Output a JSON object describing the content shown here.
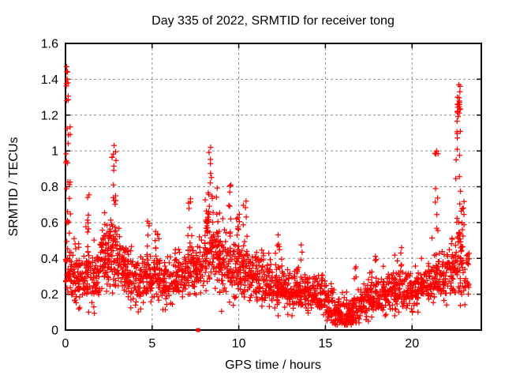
{
  "chart": {
    "title": "Day 335 of 2022, SRMTID for receiver tong",
    "xlabel": "GPS time / hours",
    "ylabel": "SRMTID / TECUs"
  },
  "chart_data": {
    "type": "scatter",
    "title": "Day 335 of 2022, SRMTID for receiver tong",
    "xlabel": "GPS time / hours",
    "ylabel": "SRMTID / TECUs",
    "marker": "plus-cross",
    "marker_color": "#ff0000",
    "border_color": "#000000",
    "grid": true,
    "grid_color": "#909090",
    "legend": "none",
    "xlim": [
      0,
      24
    ],
    "ylim": [
      0,
      1.6
    ],
    "xticks": [
      0,
      5,
      10,
      15,
      20
    ],
    "xtick_labels": [
      "0",
      "5",
      "10",
      "15",
      "20"
    ],
    "yticks": [
      0,
      0.2,
      0.4,
      0.6,
      0.8,
      1.0,
      1.2,
      1.4,
      1.6
    ],
    "ytick_labels": [
      "0",
      "0.2",
      "0.4",
      "0.6",
      "0.8",
      "1",
      "1.2",
      "1.4",
      "1.6"
    ],
    "seed": 42,
    "description": "Dense red '+' scatter of SRMTID vs GPS time. Baseline cloud ~0.2-0.45 TECUs, spikes near 0.1h (to 1.47), 2.8h (to 1.03), 8.4h (to 1.02), quiet trough 15.5-17h (~0.05-0.15), rising spike 22.3-23h (to 1.37) with dense blob 1.15-1.28.",
    "bands": [
      [
        0.0,
        0.5,
        0.12,
        0.6,
        0.33,
        0.08,
        48
      ],
      [
        0.5,
        1.0,
        0.1,
        0.55,
        0.28,
        0.08,
        52
      ],
      [
        1.0,
        1.5,
        0.1,
        0.62,
        0.3,
        0.08,
        52
      ],
      [
        1.5,
        2.0,
        0.08,
        0.58,
        0.28,
        0.08,
        50
      ],
      [
        2.0,
        2.5,
        0.1,
        0.7,
        0.38,
        0.09,
        55
      ],
      [
        2.5,
        3.0,
        0.15,
        0.72,
        0.45,
        0.1,
        58
      ],
      [
        3.0,
        3.5,
        0.15,
        0.62,
        0.36,
        0.08,
        55
      ],
      [
        3.5,
        4.0,
        0.1,
        0.52,
        0.3,
        0.08,
        50
      ],
      [
        4.0,
        4.5,
        0.08,
        0.46,
        0.27,
        0.07,
        48
      ],
      [
        4.5,
        5.0,
        0.1,
        0.55,
        0.29,
        0.07,
        50
      ],
      [
        5.0,
        5.5,
        0.12,
        0.55,
        0.3,
        0.07,
        50
      ],
      [
        5.5,
        6.0,
        0.1,
        0.48,
        0.27,
        0.07,
        46
      ],
      [
        6.0,
        6.5,
        0.1,
        0.52,
        0.28,
        0.07,
        46
      ],
      [
        6.5,
        7.0,
        0.12,
        0.55,
        0.3,
        0.07,
        46
      ],
      [
        7.0,
        7.5,
        0.1,
        0.6,
        0.32,
        0.08,
        50
      ],
      [
        7.5,
        8.0,
        0.12,
        0.62,
        0.34,
        0.08,
        50
      ],
      [
        8.0,
        8.5,
        0.15,
        0.75,
        0.45,
        0.1,
        58
      ],
      [
        8.5,
        9.0,
        0.12,
        0.7,
        0.4,
        0.09,
        55
      ],
      [
        9.0,
        9.5,
        0.08,
        0.65,
        0.35,
        0.08,
        50
      ],
      [
        9.5,
        10.0,
        0.1,
        0.62,
        0.34,
        0.08,
        50
      ],
      [
        10.0,
        10.5,
        0.12,
        0.6,
        0.33,
        0.08,
        50
      ],
      [
        10.5,
        11.0,
        0.1,
        0.55,
        0.3,
        0.07,
        50
      ],
      [
        11.0,
        11.5,
        0.1,
        0.52,
        0.28,
        0.07,
        50
      ],
      [
        11.5,
        12.0,
        0.08,
        0.46,
        0.26,
        0.07,
        50
      ],
      [
        12.0,
        12.5,
        0.08,
        0.5,
        0.25,
        0.07,
        50
      ],
      [
        12.5,
        13.0,
        0.08,
        0.45,
        0.24,
        0.07,
        50
      ],
      [
        13.0,
        13.5,
        0.08,
        0.42,
        0.22,
        0.06,
        50
      ],
      [
        13.5,
        14.0,
        0.06,
        0.42,
        0.22,
        0.06,
        50
      ],
      [
        14.0,
        14.5,
        0.06,
        0.38,
        0.2,
        0.06,
        50
      ],
      [
        14.5,
        15.0,
        0.05,
        0.35,
        0.18,
        0.06,
        50
      ],
      [
        15.0,
        15.5,
        0.04,
        0.38,
        0.14,
        0.06,
        50
      ],
      [
        15.5,
        16.0,
        0.03,
        0.25,
        0.09,
        0.05,
        52
      ],
      [
        16.0,
        16.5,
        0.03,
        0.24,
        0.08,
        0.05,
        52
      ],
      [
        16.5,
        17.0,
        0.04,
        0.32,
        0.11,
        0.05,
        50
      ],
      [
        17.0,
        17.5,
        0.05,
        0.32,
        0.15,
        0.06,
        48
      ],
      [
        17.5,
        18.0,
        0.06,
        0.4,
        0.18,
        0.06,
        48
      ],
      [
        18.0,
        18.5,
        0.08,
        0.38,
        0.18,
        0.06,
        46
      ],
      [
        18.5,
        19.0,
        0.08,
        0.42,
        0.2,
        0.06,
        46
      ],
      [
        19.0,
        19.5,
        0.1,
        0.48,
        0.22,
        0.06,
        46
      ],
      [
        19.5,
        20.0,
        0.1,
        0.5,
        0.22,
        0.06,
        46
      ],
      [
        20.0,
        20.5,
        0.1,
        0.4,
        0.22,
        0.06,
        46
      ],
      [
        20.5,
        21.0,
        0.12,
        0.45,
        0.25,
        0.06,
        46
      ],
      [
        21.0,
        21.5,
        0.12,
        0.55,
        0.28,
        0.07,
        48
      ],
      [
        21.5,
        22.0,
        0.12,
        0.52,
        0.28,
        0.07,
        48
      ],
      [
        22.0,
        22.5,
        0.15,
        0.7,
        0.33,
        0.08,
        50
      ],
      [
        22.5,
        23.0,
        0.1,
        0.8,
        0.4,
        0.12,
        52
      ],
      [
        23.0,
        23.3,
        0.1,
        0.55,
        0.28,
        0.09,
        22
      ]
    ],
    "spikes": [
      [
        0.15,
        0.14,
        0.55,
        1.47,
        26
      ],
      [
        1.35,
        0.08,
        0.5,
        0.78,
        7
      ],
      [
        2.2,
        0.12,
        0.45,
        0.7,
        8
      ],
      [
        2.8,
        0.12,
        0.7,
        1.03,
        13
      ],
      [
        4.75,
        0.1,
        0.4,
        0.66,
        6
      ],
      [
        5.3,
        0.1,
        0.4,
        0.62,
        6
      ],
      [
        7.15,
        0.08,
        0.45,
        0.77,
        7
      ],
      [
        8.35,
        0.15,
        0.62,
        1.02,
        15
      ],
      [
        8.8,
        0.1,
        0.5,
        0.85,
        8
      ],
      [
        9.45,
        0.1,
        0.5,
        0.86,
        8
      ],
      [
        9.95,
        0.1,
        0.5,
        0.8,
        7
      ],
      [
        10.35,
        0.1,
        0.45,
        0.72,
        6
      ],
      [
        12.3,
        0.1,
        0.4,
        0.62,
        5
      ],
      [
        13.6,
        0.06,
        0.38,
        0.5,
        3
      ],
      [
        16.7,
        0.08,
        0.24,
        0.43,
        4
      ],
      [
        17.9,
        0.1,
        0.25,
        0.44,
        4
      ],
      [
        19.3,
        0.1,
        0.3,
        0.5,
        4
      ],
      [
        21.4,
        0.1,
        0.55,
        1.01,
        9
      ],
      [
        22.65,
        0.15,
        0.6,
        1.37,
        18
      ],
      [
        22.7,
        0.09,
        1.15,
        1.28,
        11
      ],
      [
        22.95,
        0.08,
        0.45,
        0.75,
        7
      ]
    ],
    "outliers": [
      [
        0.07,
        1.47
      ],
      [
        0.12,
        1.44
      ],
      [
        0.1,
        1.4
      ],
      [
        0.14,
        1.38
      ],
      [
        2.8,
        1.03
      ],
      [
        8.38,
        1.02
      ],
      [
        21.42,
        1.0
      ],
      [
        22.7,
        1.37
      ],
      [
        22.76,
        1.33
      ],
      [
        22.62,
        1.3
      ]
    ],
    "special_points": [
      {
        "x": 7.65,
        "y": 0.0,
        "marker": "filled-square",
        "color": "#ff0000"
      }
    ]
  }
}
